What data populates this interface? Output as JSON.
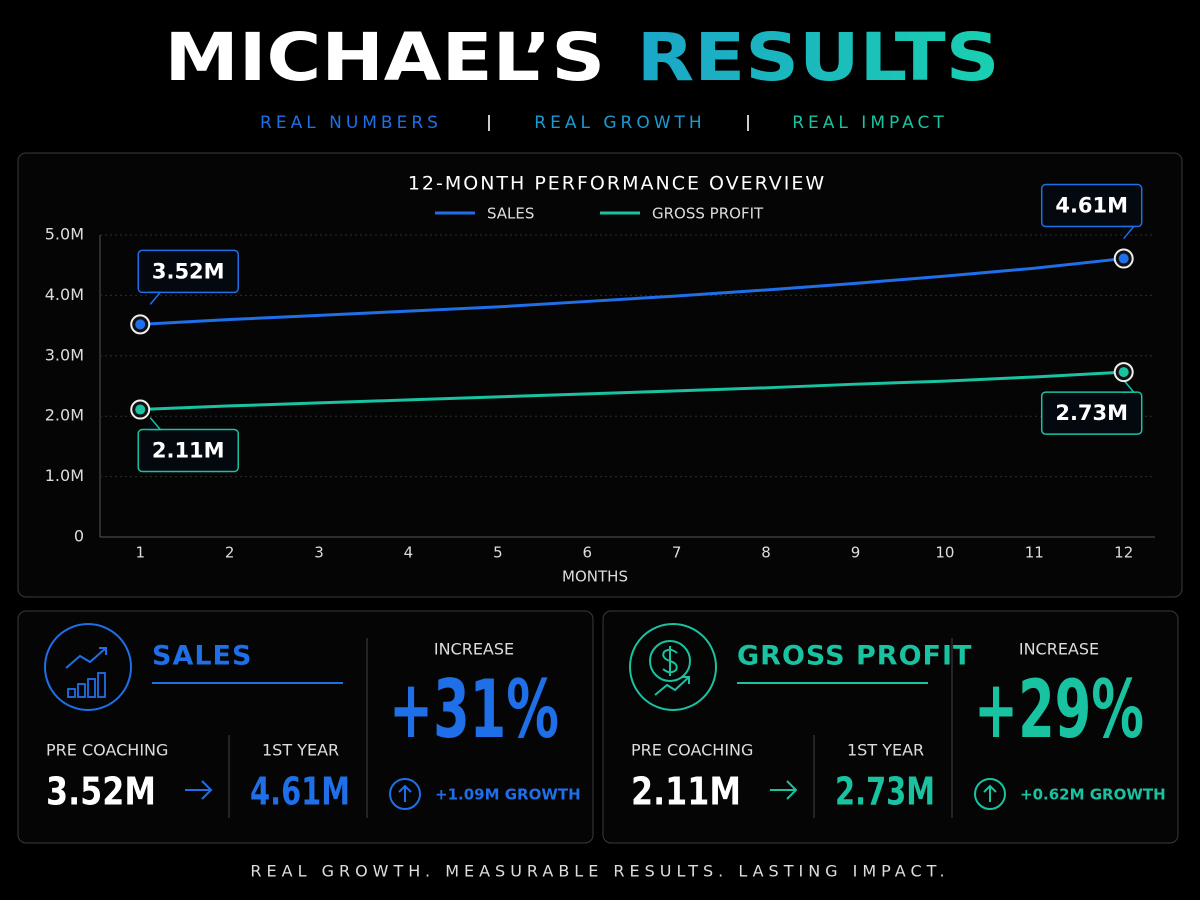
{
  "header": {
    "title_1": "MICHAEL’S",
    "title_2": "RESULTS",
    "subtitle": [
      "REAL NUMBERS",
      "REAL GROWTH",
      "REAL IMPACT"
    ]
  },
  "chart_data": {
    "type": "line",
    "title": "12-MONTH PERFORMANCE OVERVIEW",
    "x_label": "MONTHS",
    "x": [
      1,
      2,
      3,
      4,
      5,
      6,
      7,
      8,
      9,
      10,
      11,
      12
    ],
    "xlim": [
      0.55,
      12.35
    ],
    "xticks": [
      1,
      2,
      3,
      4,
      5,
      6,
      7,
      8,
      9,
      10,
      11,
      12
    ],
    "ylim": [
      0,
      5
    ],
    "yticks": [
      0,
      {
        "value": 1,
        "label": "1.0M"
      },
      {
        "value": 2,
        "label": "2.0M"
      },
      {
        "value": 3,
        "label": "3.0M"
      },
      {
        "value": 4,
        "label": "4.0M"
      },
      {
        "value": 5,
        "label": "5.0M"
      }
    ],
    "grid": true,
    "series": [
      {
        "name": "SALES",
        "color": "#1e6fe8",
        "values": [
          3.52,
          3.6,
          3.67,
          3.74,
          3.81,
          3.9,
          3.99,
          4.09,
          4.2,
          4.32,
          4.45,
          4.61
        ],
        "value_labels": [
          "3.52M",
          null,
          null,
          null,
          null,
          null,
          null,
          null,
          null,
          null,
          null,
          "4.61M"
        ]
      },
      {
        "name": "GROSS PROFIT",
        "color": "#19c2a0",
        "values": [
          2.11,
          2.17,
          2.22,
          2.27,
          2.32,
          2.37,
          2.42,
          2.47,
          2.53,
          2.58,
          2.65,
          2.73
        ],
        "value_labels": [
          "2.11M",
          null,
          null,
          null,
          null,
          null,
          null,
          null,
          null,
          null,
          null,
          "2.73M"
        ]
      }
    ]
  },
  "cards": [
    {
      "title": "SALES",
      "color": "#1e6fe8",
      "pre_label": "PRE COACHING",
      "pre_value": "3.52M",
      "year_label": "1ST YEAR",
      "year_value": "4.61M",
      "increase_label": "INCREASE",
      "increase": "+31%",
      "growth": "+1.09M GROWTH"
    },
    {
      "title": "GROSS PROFIT",
      "color": "#19c2a0",
      "pre_label": "PRE COACHING",
      "pre_value": "2.11M",
      "year_label": "1ST YEAR",
      "year_value": "2.73M",
      "increase_label": "INCREASE",
      "increase": "+29%",
      "growth": "+0.62M GROWTH"
    }
  ],
  "footer": "REAL GROWTH. MEASURABLE RESULTS. LASTING IMPACT."
}
